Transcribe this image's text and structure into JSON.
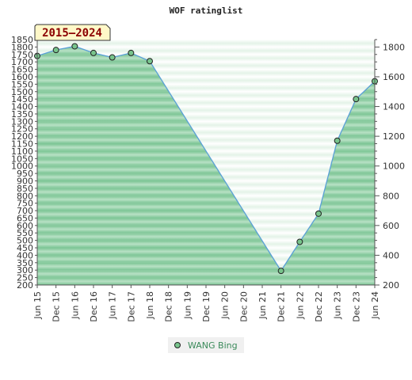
{
  "chart_data": {
    "type": "area",
    "title": "WOF ratinglist",
    "period_label": "2015–2024",
    "x": [
      "Jun 15",
      "Dec 15",
      "Jun 16",
      "Dec 16",
      "Jun 17",
      "Dec 17",
      "Jun 18",
      "Dec 18",
      "Jun 19",
      "Dec 19",
      "Jun 20",
      "Dec 20",
      "Jun 21",
      "Dec 21",
      "Jun 22",
      "Dec 22",
      "Jun 23",
      "Dec 23",
      "Jun 24"
    ],
    "series": [
      {
        "name": "WANG Bing",
        "points": [
          {
            "x": "Jun 15",
            "y": 1740
          },
          {
            "x": "Dec 15",
            "y": 1780
          },
          {
            "x": "Jun 16",
            "y": 1805
          },
          {
            "x": "Dec 16",
            "y": 1760
          },
          {
            "x": "Jun 17",
            "y": 1730
          },
          {
            "x": "Dec 17",
            "y": 1760
          },
          {
            "x": "Jun 18",
            "y": 1705
          },
          {
            "x": "Dec 21",
            "y": 295
          },
          {
            "x": "Jun 22",
            "y": 490
          },
          {
            "x": "Dec 22",
            "y": 680
          },
          {
            "x": "Jun 23",
            "y": 1170
          },
          {
            "x": "Dec 23",
            "y": 1450
          },
          {
            "x": "Jun 24",
            "y": 1570
          }
        ]
      }
    ],
    "left_axis": {
      "ylim": [
        200,
        1850
      ],
      "ticks": [
        200,
        250,
        300,
        350,
        400,
        450,
        500,
        550,
        600,
        650,
        700,
        750,
        800,
        850,
        900,
        950,
        1000,
        1050,
        1100,
        1150,
        1200,
        1250,
        1300,
        1350,
        1400,
        1450,
        1500,
        1550,
        1600,
        1650,
        1700,
        1750,
        1800,
        1850
      ]
    },
    "right_axis": {
      "ylim": [
        200,
        1850
      ],
      "ticks": [
        200,
        400,
        600,
        800,
        1000,
        1200,
        1400,
        1600,
        1800
      ]
    },
    "legend_position": "bottom-center",
    "grid": true,
    "colors": {
      "area_dark": "#7ac493",
      "area_light": "#b8e1c5",
      "band_light": "#ffffff",
      "band_mid": "#e4f3e8",
      "line": "#5aa0d6",
      "marker": "#78c48c",
      "marker_stroke": "#222222",
      "legend_text": "#3a8a5a",
      "badge_fill": "#fff8c8",
      "badge_text": "#8b0000"
    }
  }
}
